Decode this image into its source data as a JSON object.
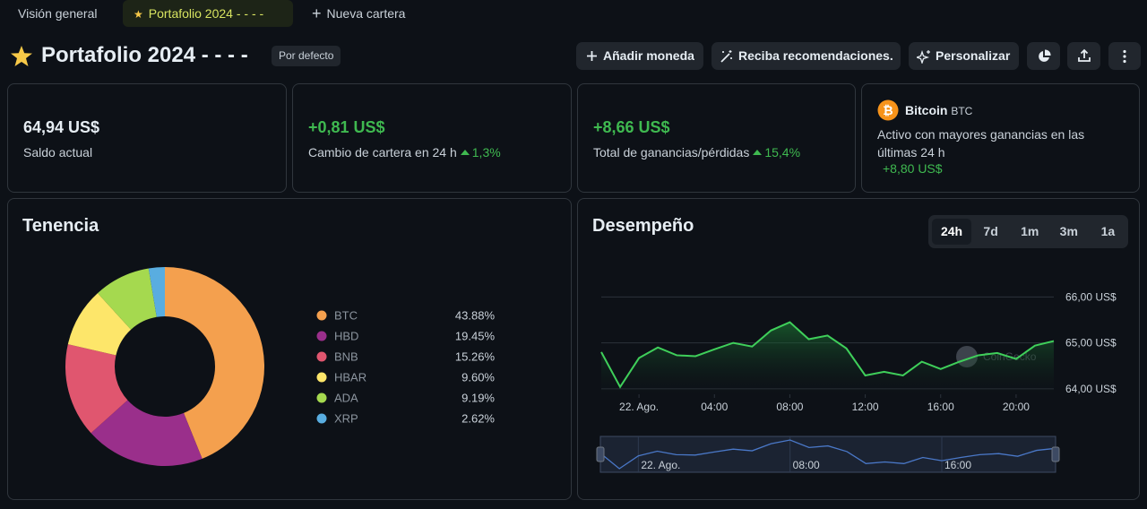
{
  "tabs": [
    {
      "label": "Visión general",
      "active": false
    },
    {
      "label": "Portafolio 2024 - - - -",
      "active": true
    },
    {
      "label": "Nueva cartera",
      "active": false
    }
  ],
  "header": {
    "title": "Portafolio 2024 - - - -",
    "badge": "Por defecto",
    "buttons": [
      "Añadir moneda",
      "Reciba recomendaciones.",
      "Personalizar"
    ]
  },
  "stats": [
    {
      "value": "64,94 US$",
      "label": "Saldo actual"
    },
    {
      "value": "+0,81 US$",
      "label": "Cambio de cartera en 24 h",
      "change": "1,3%"
    },
    {
      "value": "+8,66 US$",
      "label": "Total de ganancias/pérdidas",
      "change": "15,4%"
    }
  ],
  "top_gainer": {
    "name": "Bitcoin",
    "symbol": "BTC",
    "description": "Activo con mayores ganancias en las últimas 24 h",
    "value": "+8,80 US$"
  },
  "holdings": {
    "title": "Tenencia",
    "chart_data": {
      "type": "pie",
      "donut": true,
      "categories": [
        "BTC",
        "HBD",
        "BNB",
        "HBAR",
        "ADA",
        "XRP"
      ],
      "values": [
        43.88,
        19.45,
        15.26,
        9.6,
        9.19,
        2.62
      ],
      "value_labels": [
        "43.88%",
        "19.45%",
        "15.26%",
        "9.60%",
        "9.19%",
        "2.62%"
      ],
      "colors": [
        "#f4a04e",
        "#9a2f8b",
        "#e0566f",
        "#fde66a",
        "#a5d94f",
        "#59ade0"
      ]
    }
  },
  "performance": {
    "title": "Desempeño",
    "ranges": [
      "24h",
      "7d",
      "1m",
      "3m",
      "1a"
    ],
    "active_range": 0,
    "watermark": "CoinGecko",
    "chart_data": {
      "type": "line",
      "x": [
        -2,
        -1,
        0,
        1,
        2,
        3,
        4,
        5,
        6,
        7,
        8,
        9,
        10,
        11,
        12,
        13,
        14,
        15,
        16,
        17,
        18,
        19,
        20,
        21,
        22
      ],
      "series": [
        {
          "color": "#3fcf5a",
          "values": [
            64.8,
            64.04,
            64.67,
            64.9,
            64.73,
            64.71,
            64.86,
            65.0,
            64.92,
            65.27,
            65.45,
            65.08,
            65.16,
            64.88,
            64.29,
            64.37,
            64.29,
            64.59,
            64.43,
            64.59,
            64.73,
            64.78,
            64.65,
            64.94,
            65.04
          ]
        }
      ],
      "xlim": [
        -2,
        22
      ],
      "xticks": [
        {
          "value": 0,
          "label": "22. Ago."
        },
        {
          "value": 4,
          "label": "04:00"
        },
        {
          "value": 8,
          "label": "08:00"
        },
        {
          "value": 12,
          "label": "12:00"
        },
        {
          "value": 16,
          "label": "16:00"
        },
        {
          "value": 20,
          "label": "20:00"
        }
      ],
      "ylim": [
        63.88,
        66.3
      ],
      "yticks": [
        {
          "value": 64,
          "label": "64,00 US$"
        },
        {
          "value": 65,
          "label": "65,00 US$"
        },
        {
          "value": 66,
          "label": "66,00 US$"
        }
      ],
      "grid": true,
      "navigator": true
    }
  }
}
